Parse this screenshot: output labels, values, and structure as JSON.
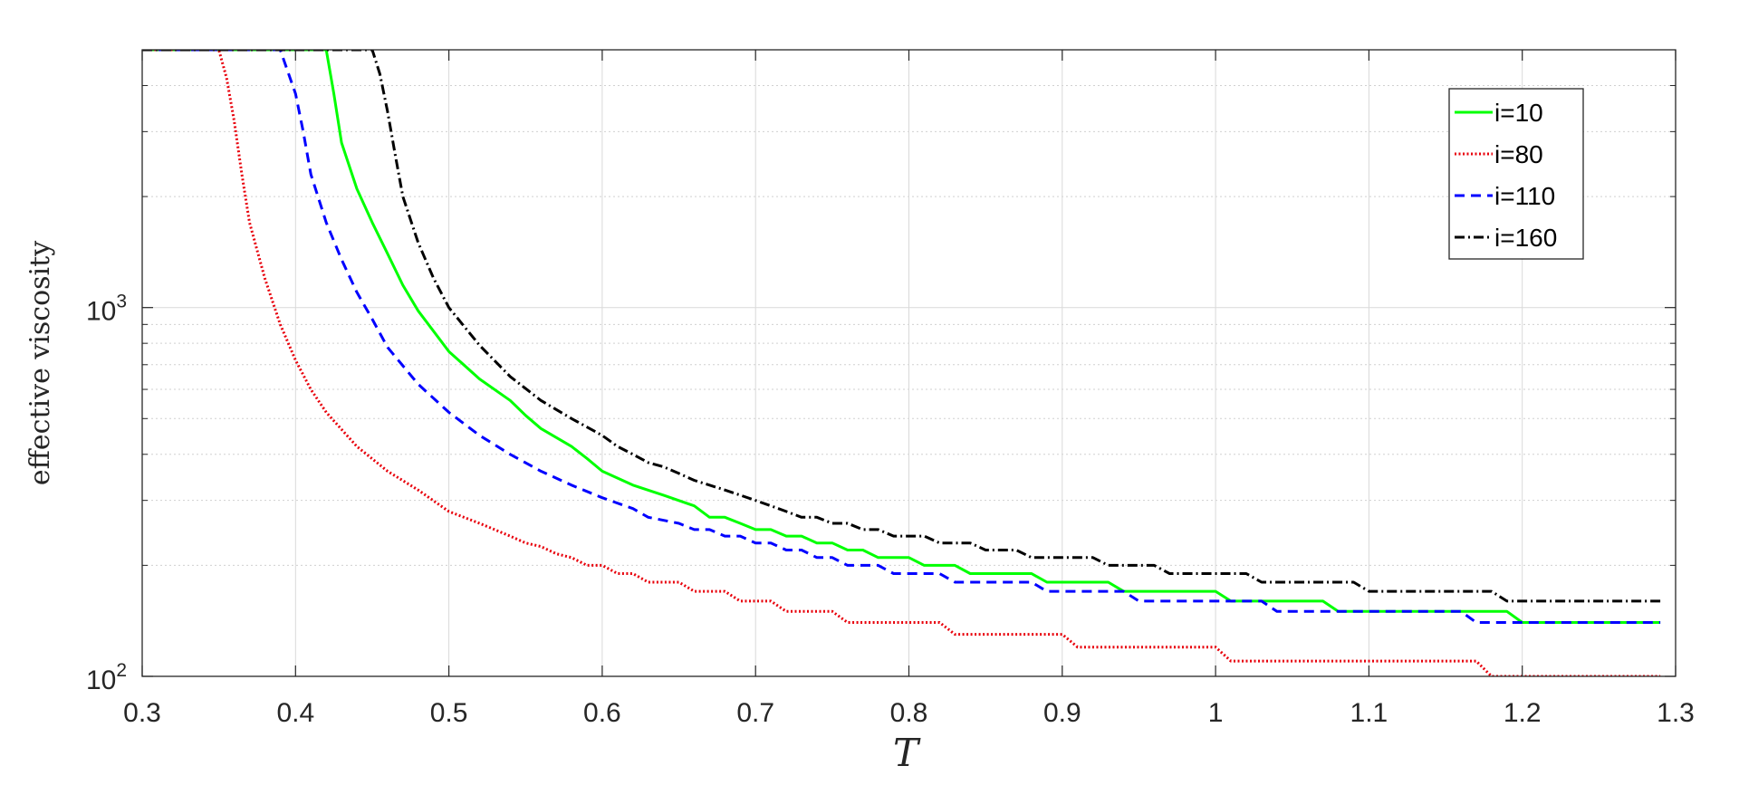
{
  "chart_data": {
    "type": "line",
    "title": "",
    "xlabel": "T",
    "ylabel": "effective viscosity",
    "xscale": "linear",
    "yscale": "log",
    "xlim": [
      0.3,
      1.3
    ],
    "ylim": [
      100,
      5000
    ],
    "grid": true,
    "legend_position": "top-right",
    "xticks": [
      0.3,
      0.4,
      0.5,
      0.6,
      0.7,
      0.8,
      0.9,
      1.0,
      1.1,
      1.2,
      1.3
    ],
    "xtick_labels": [
      "0.3",
      "0.4",
      "0.5",
      "0.6",
      "0.7",
      "0.8",
      "0.9",
      "1",
      "1.1",
      "1.2",
      "1.3"
    ],
    "yticks": [
      {
        "value": 100,
        "base": "10",
        "exp": "2"
      },
      {
        "value": 1000,
        "base": "10",
        "exp": "3"
      }
    ],
    "series": [
      {
        "name": "i=10",
        "color": "#00ff00",
        "dash": "solid",
        "x": [
          0.3,
          0.42,
          0.425,
          0.43,
          0.44,
          0.45,
          0.46,
          0.47,
          0.48,
          0.5,
          0.52,
          0.54,
          0.55,
          0.56,
          0.58,
          0.59,
          0.6,
          0.62,
          0.64,
          0.66,
          0.67,
          0.68,
          0.69,
          0.7,
          0.71,
          0.72,
          0.73,
          0.74,
          0.75,
          0.76,
          0.77,
          0.78,
          0.79,
          0.8,
          0.81,
          0.82,
          0.83,
          0.84,
          0.85,
          0.88,
          0.89,
          0.93,
          0.94,
          1.0,
          1.01,
          1.07,
          1.08,
          1.19,
          1.2,
          1.29
        ],
        "y": [
          5000,
          5000,
          3800,
          2800,
          2100,
          1700,
          1400,
          1150,
          980,
          760,
          640,
          560,
          510,
          470,
          420,
          390,
          360,
          330,
          310,
          290,
          270,
          270,
          260,
          250,
          250,
          240,
          240,
          230,
          230,
          220,
          220,
          210,
          210,
          210,
          200,
          200,
          200,
          190,
          190,
          190,
          180,
          180,
          170,
          170,
          160,
          160,
          150,
          150,
          140,
          140
        ]
      },
      {
        "name": "i=80",
        "color": "#e8000b",
        "dash": "dotted",
        "x": [
          0.3,
          0.35,
          0.355,
          0.36,
          0.365,
          0.37,
          0.38,
          0.39,
          0.4,
          0.41,
          0.42,
          0.44,
          0.46,
          0.48,
          0.5,
          0.52,
          0.54,
          0.55,
          0.56,
          0.57,
          0.58,
          0.59,
          0.6,
          0.61,
          0.62,
          0.63,
          0.65,
          0.66,
          0.68,
          0.69,
          0.71,
          0.72,
          0.75,
          0.76,
          0.82,
          0.83,
          0.9,
          0.91,
          1.0,
          1.01,
          1.17,
          1.18,
          1.29
        ],
        "y": [
          5000,
          5000,
          4200,
          3200,
          2300,
          1700,
          1200,
          900,
          720,
          600,
          520,
          420,
          360,
          320,
          280,
          260,
          240,
          230,
          225,
          215,
          210,
          200,
          200,
          190,
          190,
          180,
          180,
          170,
          170,
          160,
          160,
          150,
          150,
          140,
          140,
          130,
          130,
          120,
          120,
          110,
          110,
          100,
          100
        ]
      },
      {
        "name": "i=110",
        "color": "#0000ff",
        "dash": "dashed",
        "x": [
          0.3,
          0.39,
          0.4,
          0.405,
          0.41,
          0.42,
          0.43,
          0.44,
          0.45,
          0.46,
          0.48,
          0.5,
          0.52,
          0.54,
          0.56,
          0.58,
          0.6,
          0.62,
          0.63,
          0.65,
          0.66,
          0.67,
          0.68,
          0.69,
          0.7,
          0.71,
          0.72,
          0.73,
          0.74,
          0.75,
          0.76,
          0.77,
          0.78,
          0.79,
          0.8,
          0.82,
          0.83,
          0.84,
          0.88,
          0.89,
          0.94,
          0.95,
          1.03,
          1.04,
          1.16,
          1.17,
          1.29
        ],
        "y": [
          5000,
          5000,
          3800,
          3000,
          2300,
          1700,
          1350,
          1100,
          930,
          780,
          620,
          520,
          450,
          400,
          360,
          330,
          305,
          285,
          270,
          260,
          250,
          250,
          240,
          240,
          230,
          230,
          220,
          220,
          210,
          210,
          200,
          200,
          200,
          190,
          190,
          190,
          180,
          180,
          180,
          170,
          170,
          160,
          160,
          150,
          150,
          140,
          140
        ]
      },
      {
        "name": "i=160",
        "color": "#000000",
        "dash": "dashdot",
        "x": [
          0.3,
          0.45,
          0.455,
          0.46,
          0.465,
          0.47,
          0.48,
          0.49,
          0.5,
          0.52,
          0.54,
          0.56,
          0.58,
          0.6,
          0.61,
          0.62,
          0.63,
          0.64,
          0.65,
          0.66,
          0.67,
          0.68,
          0.69,
          0.7,
          0.71,
          0.72,
          0.73,
          0.74,
          0.75,
          0.76,
          0.77,
          0.78,
          0.79,
          0.81,
          0.82,
          0.84,
          0.85,
          0.87,
          0.88,
          0.92,
          0.93,
          0.96,
          0.97,
          1.02,
          1.03,
          1.09,
          1.1,
          1.18,
          1.19,
          1.29
        ],
        "y": [
          5000,
          5000,
          4300,
          3400,
          2600,
          2000,
          1500,
          1200,
          1000,
          790,
          650,
          560,
          500,
          450,
          420,
          400,
          380,
          370,
          355,
          340,
          330,
          320,
          310,
          300,
          290,
          280,
          270,
          270,
          260,
          260,
          250,
          250,
          240,
          240,
          230,
          230,
          220,
          220,
          210,
          210,
          200,
          200,
          190,
          190,
          180,
          180,
          170,
          170,
          160,
          160
        ]
      }
    ]
  }
}
